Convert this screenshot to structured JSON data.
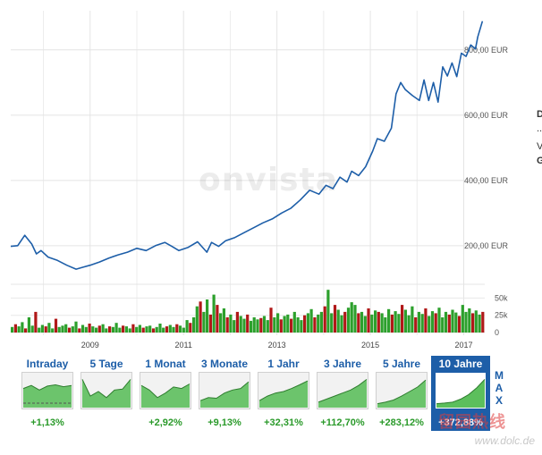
{
  "chart_data": [
    {
      "type": "line",
      "title": "",
      "xlabel": "",
      "ylabel": "",
      "y_unit": "EUR",
      "ylim": [
        90,
        920
      ],
      "xlim": [
        2007.3,
        2017.45
      ],
      "y_ticks": [
        200,
        400,
        600,
        800
      ],
      "y_tick_labels": [
        "200,00 EUR",
        "400,00 EUR",
        "600,00 EUR",
        "800,00 EUR"
      ],
      "grid": true,
      "series": [
        {
          "color": "#1d5ea8",
          "x": [
            2007.3,
            2007.45,
            2007.6,
            2007.75,
            2007.85,
            2007.95,
            2008.1,
            2008.3,
            2008.5,
            2008.7,
            2008.85,
            2009.0,
            2009.2,
            2009.4,
            2009.6,
            2009.8,
            2010.0,
            2010.2,
            2010.4,
            2010.6,
            2010.75,
            2010.9,
            2011.1,
            2011.3,
            2011.5,
            2011.6,
            2011.75,
            2011.9,
            2012.1,
            2012.3,
            2012.5,
            2012.7,
            2012.9,
            2013.1,
            2013.3,
            2013.5,
            2013.7,
            2013.9,
            2014.05,
            2014.2,
            2014.35,
            2014.5,
            2014.6,
            2014.75,
            2014.9,
            2015.05,
            2015.15,
            2015.3,
            2015.45,
            2015.55,
            2015.65,
            2015.75,
            2015.9,
            2016.05,
            2016.15,
            2016.25,
            2016.35,
            2016.45,
            2016.55,
            2016.65,
            2016.75,
            2016.85,
            2016.95,
            2017.05,
            2017.15,
            2017.25,
            2017.3,
            2017.4
          ],
          "y": [
            198,
            200,
            232,
            205,
            175,
            185,
            165,
            155,
            140,
            128,
            134,
            140,
            150,
            162,
            172,
            180,
            192,
            185,
            200,
            210,
            198,
            185,
            195,
            212,
            180,
            210,
            198,
            215,
            225,
            240,
            255,
            270,
            282,
            300,
            315,
            340,
            370,
            358,
            385,
            375,
            410,
            395,
            428,
            415,
            442,
            490,
            528,
            520,
            560,
            665,
            700,
            678,
            660,
            645,
            708,
            645,
            700,
            640,
            748,
            720,
            760,
            718,
            790,
            780,
            815,
            803,
            840,
            888
          ]
        }
      ]
    },
    {
      "type": "bar",
      "title": "",
      "y_ticks": [
        0,
        25000,
        50000
      ],
      "y_tick_labels": [
        "0",
        "25k",
        "50k"
      ],
      "ylim": [
        0,
        70000
      ],
      "x_ticks": [
        2009,
        2011,
        2013,
        2015,
        2017
      ],
      "x_tick_labels": [
        "2009",
        "2011",
        "2013",
        "2015",
        "2017"
      ],
      "up_color": "#2ca02c",
      "down_color": "#b01818",
      "series": [
        {
          "name": "",
          "values": [
            8000,
            12000,
            9000,
            15000,
            6000,
            22000,
            10000,
            30000,
            7000,
            11000,
            9000,
            14000,
            6000,
            20000,
            8000,
            10000,
            12000,
            7000,
            9000,
            16000,
            6000,
            11000,
            8000,
            13000,
            9000,
            7000,
            10000,
            12000,
            6000,
            9000,
            8000,
            14000,
            7000,
            10000,
            9000,
            6000,
            12000,
            8000,
            11000,
            7000,
            9000,
            10000,
            6000,
            8000,
            13000,
            7000,
            9000,
            11000,
            8000,
            12000,
            10000,
            7000,
            18000,
            14000,
            22000,
            38000,
            45000,
            30000,
            48000,
            26000,
            55000,
            40000,
            28000,
            35000,
            22000,
            26000,
            18000,
            30000,
            24000,
            20000,
            26000,
            17000,
            22000,
            19000,
            21000,
            24000,
            18000,
            36000,
            22000,
            28000,
            19000,
            24000,
            26000,
            20000,
            30000,
            22000,
            18000,
            25000,
            28000,
            34000,
            22000,
            26000,
            30000,
            38000,
            62000,
            28000,
            40000,
            33000,
            25000,
            30000,
            36000,
            44000,
            40000,
            28000,
            30000,
            24000,
            35000,
            26000,
            32000,
            30000,
            28000,
            22000,
            34000,
            26000,
            31000,
            27000,
            40000,
            33000,
            25000,
            38000,
            22000,
            30000,
            27000,
            35000,
            24000,
            31000,
            28000,
            36000,
            22000,
            30000,
            26000,
            33000,
            29000,
            24000,
            40000,
            30000,
            35000,
            28000,
            32000,
            26000,
            30000
          ],
          "up": [
            true,
            false,
            true,
            true,
            false,
            true,
            true,
            false,
            true,
            true,
            false,
            true,
            true,
            false,
            true,
            true,
            true,
            false,
            true,
            true,
            false,
            true,
            true,
            false,
            true,
            true,
            false,
            true,
            true,
            false,
            true,
            true,
            true,
            false,
            true,
            true,
            false,
            true,
            true,
            false,
            true,
            true,
            false,
            true,
            true,
            true,
            false,
            true,
            true,
            false,
            true,
            true,
            true,
            false,
            true,
            true,
            false,
            true,
            true,
            false,
            true,
            false,
            true,
            true,
            false,
            true,
            true,
            false,
            true,
            true,
            false,
            true,
            true,
            true,
            false,
            true,
            true,
            false,
            true,
            true,
            false,
            true,
            true,
            false,
            true,
            true,
            true,
            false,
            true,
            true,
            false,
            true,
            true,
            false,
            true,
            true,
            false,
            true,
            true,
            false,
            true,
            true,
            true,
            false,
            true,
            true,
            false,
            true,
            true,
            false,
            true,
            true,
            true,
            false,
            true,
            true,
            false,
            true,
            true,
            true,
            false,
            true,
            true,
            false,
            true,
            true,
            false,
            true,
            true,
            true,
            false,
            true,
            true,
            false,
            true,
            true,
            true,
            false,
            true,
            true
          ]
        }
      ]
    }
  ],
  "watermark": "onvista",
  "cut_off_right": [
    {
      "text": "D",
      "bold": true
    },
    {
      "text": "..",
      "bold": false
    },
    {
      "text": "V",
      "bold": false
    },
    {
      "text": "G",
      "bold": true
    }
  ],
  "ranges": [
    {
      "label": "Intraday",
      "change": "+1,13%",
      "thumb": [
        0.6,
        0.7,
        0.55,
        0.68,
        0.72,
        0.66,
        0.7
      ],
      "dashed": true,
      "active": false
    },
    {
      "label": "5 Tage",
      "change": "",
      "thumb": [
        0.9,
        0.35,
        0.5,
        0.3,
        0.55,
        0.58,
        0.9
      ],
      "dashed": false,
      "active": false
    },
    {
      "label": "1 Monat",
      "change": "+2,92%",
      "thumb": [
        0.7,
        0.55,
        0.3,
        0.45,
        0.65,
        0.6,
        0.75
      ],
      "dashed": false,
      "active": false
    },
    {
      "label": "3 Monate",
      "change": "+9,13%",
      "thumb": [
        0.2,
        0.3,
        0.28,
        0.45,
        0.55,
        0.6,
        0.82
      ],
      "dashed": false,
      "active": false
    },
    {
      "label": "1 Jahr",
      "change": "+32,31%",
      "thumb": [
        0.2,
        0.35,
        0.45,
        0.5,
        0.6,
        0.72,
        0.85
      ],
      "dashed": false,
      "active": false
    },
    {
      "label": "3 Jahre",
      "change": "+112,70%",
      "thumb": [
        0.15,
        0.25,
        0.35,
        0.45,
        0.55,
        0.7,
        0.9
      ],
      "dashed": false,
      "active": false
    },
    {
      "label": "5 Jahre",
      "change": "+283,12%",
      "thumb": [
        0.1,
        0.15,
        0.22,
        0.35,
        0.5,
        0.65,
        0.88
      ],
      "dashed": false,
      "active": false
    },
    {
      "label": "10 Jahre",
      "change": "+372,88%",
      "thumb": [
        0.1,
        0.12,
        0.15,
        0.25,
        0.4,
        0.62,
        0.9
      ],
      "dashed": false,
      "active": true
    }
  ],
  "max_label": [
    "M",
    "A",
    "X"
  ],
  "footer_watermark": "www.dolc.de",
  "logo_watermark": "留园热线"
}
